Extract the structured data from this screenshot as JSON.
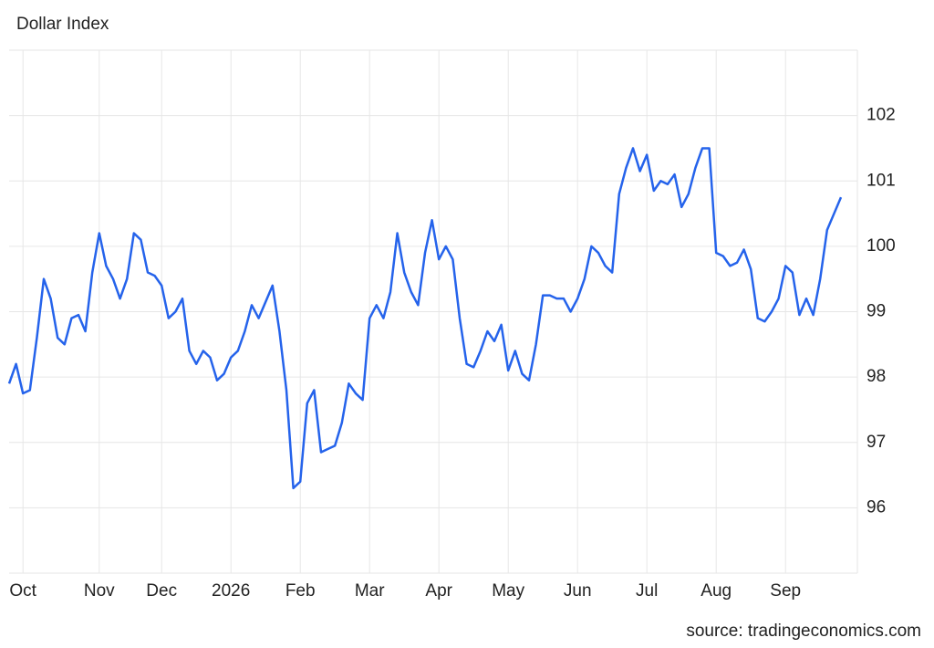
{
  "chart_data": {
    "type": "line",
    "title": "Dollar Index",
    "source": "source: tradingeconomics.com",
    "categories": [
      null,
      null,
      "Oct",
      null,
      null,
      null,
      null,
      null,
      null,
      null,
      null,
      null,
      null,
      "Nov",
      null,
      null,
      null,
      null,
      null,
      null,
      null,
      null,
      "Dec",
      null,
      null,
      null,
      null,
      null,
      null,
      null,
      null,
      null,
      "2026",
      null,
      null,
      null,
      null,
      null,
      null,
      null,
      null,
      null,
      "Feb",
      null,
      null,
      null,
      null,
      null,
      null,
      null,
      null,
      null,
      "Mar",
      null,
      null,
      null,
      null,
      null,
      null,
      null,
      null,
      null,
      "Apr",
      null,
      null,
      null,
      null,
      null,
      null,
      null,
      null,
      null,
      "May",
      null,
      null,
      null,
      null,
      null,
      null,
      null,
      null,
      null,
      "Jun",
      null,
      null,
      null,
      null,
      null,
      null,
      null,
      null,
      null,
      "Jul",
      null,
      null,
      null,
      null,
      null,
      null,
      null,
      null,
      null,
      "Aug",
      null,
      null,
      null,
      null,
      null,
      null,
      null,
      null,
      null,
      "Sep",
      null,
      null,
      null,
      null,
      null,
      null,
      null,
      null
    ],
    "values": [
      97.9,
      98.2,
      97.75,
      97.8,
      98.6,
      99.5,
      99.2,
      98.6,
      98.5,
      98.9,
      98.95,
      98.7,
      99.6,
      100.2,
      99.7,
      99.5,
      99.2,
      99.5,
      100.2,
      100.1,
      99.6,
      99.55,
      99.4,
      98.9,
      99.0,
      99.2,
      98.4,
      98.2,
      98.4,
      98.3,
      97.95,
      98.05,
      98.3,
      98.4,
      98.7,
      99.1,
      98.9,
      99.15,
      99.4,
      98.7,
      97.8,
      96.3,
      96.4,
      97.6,
      97.8,
      96.85,
      96.9,
      96.95,
      97.3,
      97.9,
      97.75,
      97.65,
      98.9,
      99.1,
      98.9,
      99.3,
      100.2,
      99.6,
      99.3,
      99.1,
      99.9,
      100.4,
      99.8,
      100.0,
      99.8,
      98.9,
      98.2,
      98.15,
      98.4,
      98.7,
      98.55,
      98.8,
      98.1,
      98.4,
      98.05,
      97.95,
      98.5,
      99.25,
      99.25,
      99.2,
      99.2,
      99.0,
      99.2,
      99.5,
      100.0,
      99.9,
      99.7,
      99.6,
      100.8,
      101.2,
      101.5,
      101.15,
      101.4,
      100.85,
      101.0,
      100.95,
      101.1,
      100.6,
      100.8,
      101.2,
      101.5,
      101.5,
      99.9,
      99.85,
      99.7,
      99.75,
      99.95,
      99.65,
      98.9,
      98.85,
      99.0,
      99.2,
      99.7,
      99.6,
      98.95,
      99.2,
      98.95,
      99.5,
      100.25,
      100.5,
      100.75
    ],
    "color": "#2563eb",
    "ylim": [
      95,
      103
    ],
    "yticks": [
      96,
      97,
      98,
      99,
      100,
      101,
      102
    ],
    "grid": true
  }
}
